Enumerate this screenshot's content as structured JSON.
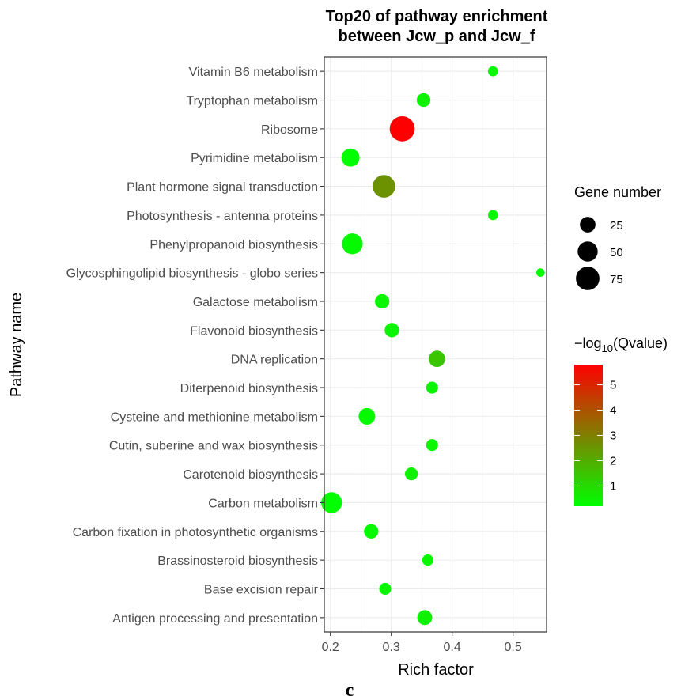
{
  "chart_data": {
    "type": "scatter",
    "title": [
      "Top20 of pathway enrichment",
      "between Jcw_p and Jcw_f"
    ],
    "xlabel": "Rich factor",
    "ylabel": "Pathway name",
    "xlim": [
      0.19,
      0.555
    ],
    "xticks": [
      0.2,
      0.3,
      0.4,
      0.5
    ],
    "xtick_labels": [
      "0.2",
      "0.3",
      "0.4",
      "0.5"
    ],
    "grid": true,
    "legend_position": "right",
    "size_legend": {
      "title": "Gene number",
      "values": [
        25,
        50,
        75
      ],
      "labels": [
        "25",
        "50",
        "75"
      ]
    },
    "color_legend": {
      "title_prefix": "−log",
      "title_sub": "10",
      "title_suffix": "(Qvalue)",
      "min": 0.2,
      "max": 5.8,
      "ticks": [
        1,
        2,
        3,
        4,
        5
      ],
      "tick_labels": [
        "1",
        "2",
        "3",
        "4",
        "5"
      ],
      "colors": [
        "#00ff00",
        "#ff0000"
      ]
    },
    "points": [
      {
        "pathway": "Vitamin B6 metabolism",
        "rich_factor": 0.467,
        "gene_number": 6,
        "neg_log10_q": 0.3
      },
      {
        "pathway": "Tryptophan metabolism",
        "rich_factor": 0.353,
        "gene_number": 17,
        "neg_log10_q": 0.5
      },
      {
        "pathway": "Ribosome",
        "rich_factor": 0.318,
        "gene_number": 88,
        "neg_log10_q": 5.8
      },
      {
        "pathway": "Pyrimidine metabolism",
        "rich_factor": 0.233,
        "gene_number": 38,
        "neg_log10_q": 0.2
      },
      {
        "pathway": "Plant hormone signal transduction",
        "rich_factor": 0.288,
        "gene_number": 68,
        "neg_log10_q": 2.6
      },
      {
        "pathway": "Photosynthesis - antenna proteins",
        "rich_factor": 0.467,
        "gene_number": 6,
        "neg_log10_q": 0.3
      },
      {
        "pathway": "Phenylpropanoid biosynthesis",
        "rich_factor": 0.236,
        "gene_number": 55,
        "neg_log10_q": 0.3
      },
      {
        "pathway": "Glycosphingolipid biosynthesis - globo series",
        "rich_factor": 0.545,
        "gene_number": 3,
        "neg_log10_q": 0.3
      },
      {
        "pathway": "Galactose metabolism",
        "rich_factor": 0.285,
        "gene_number": 20,
        "neg_log10_q": 0.4
      },
      {
        "pathway": "Flavonoid biosynthesis",
        "rich_factor": 0.301,
        "gene_number": 20,
        "neg_log10_q": 0.4
      },
      {
        "pathway": "DNA replication",
        "rich_factor": 0.375,
        "gene_number": 29,
        "neg_log10_q": 1.5
      },
      {
        "pathway": "Diterpenoid biosynthesis",
        "rich_factor": 0.367,
        "gene_number": 11,
        "neg_log10_q": 0.4
      },
      {
        "pathway": "Cysteine and methionine metabolism",
        "rich_factor": 0.26,
        "gene_number": 30,
        "neg_log10_q": 0.3
      },
      {
        "pathway": "Cutin, suberine and wax biosynthesis",
        "rich_factor": 0.367,
        "gene_number": 11,
        "neg_log10_q": 0.4
      },
      {
        "pathway": "Carotenoid biosynthesis",
        "rich_factor": 0.333,
        "gene_number": 14,
        "neg_log10_q": 0.5
      },
      {
        "pathway": "Carbon metabolism",
        "rich_factor": 0.202,
        "gene_number": 55,
        "neg_log10_q": 0.2
      },
      {
        "pathway": "Carbon fixation in photosynthetic organisms",
        "rich_factor": 0.267,
        "gene_number": 20,
        "neg_log10_q": 0.3
      },
      {
        "pathway": "Brassinosteroid biosynthesis",
        "rich_factor": 0.36,
        "gene_number": 9,
        "neg_log10_q": 0.4
      },
      {
        "pathway": "Base excision repair",
        "rich_factor": 0.29,
        "gene_number": 11,
        "neg_log10_q": 0.4
      },
      {
        "pathway": "Antigen processing and presentation",
        "rich_factor": 0.355,
        "gene_number": 22,
        "neg_log10_q": 0.5
      }
    ]
  },
  "caption": "c"
}
